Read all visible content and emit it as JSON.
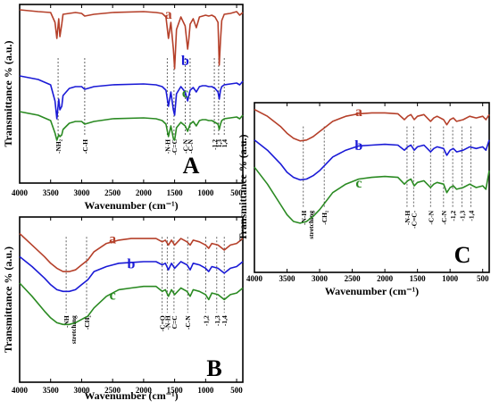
{
  "colors": {
    "a": "#b5402a",
    "b": "#1a1ad6",
    "c": "#2a8a22",
    "frame": "#000000"
  },
  "chart_data": [
    {
      "type": "line",
      "panel": "A",
      "xlabel": "Wavenumber (cm⁻¹)",
      "ylabel": "Transmittance % (a.u.)",
      "xlim": [
        4000,
        400
      ],
      "x_reversed": true,
      "xticks": [
        "4000",
        "3500",
        "3000",
        "2500",
        "2000",
        "1500",
        "1000",
        "500"
      ],
      "ylim": [
        0,
        10
      ],
      "series": [
        {
          "name": "a",
          "label_x": 1600,
          "label_y": 9.2,
          "x": [
            4000,
            3700,
            3500,
            3430,
            3400,
            3370,
            3350,
            3320,
            3300,
            3200,
            3100,
            3000,
            2950,
            2800,
            2500,
            2000,
            1800,
            1700,
            1640,
            1600,
            1560,
            1520,
            1500,
            1470,
            1400,
            1330,
            1290,
            1270,
            1250,
            1200,
            1150,
            1100,
            1050,
            1000,
            950,
            900,
            850,
            800,
            780,
            760,
            740,
            700,
            600,
            500,
            450,
            400
          ],
          "y": [
            9.7,
            9.6,
            9.55,
            9.0,
            8.1,
            9.2,
            8.2,
            8.9,
            9.45,
            9.5,
            9.55,
            9.5,
            9.35,
            9.45,
            9.55,
            9.6,
            9.55,
            9.5,
            9.3,
            8.1,
            9.0,
            7.5,
            6.4,
            8.6,
            9.3,
            8.8,
            7.5,
            8.1,
            8.9,
            9.2,
            8.7,
            9.3,
            9.35,
            9.4,
            9.35,
            9.4,
            9.3,
            9.0,
            6.6,
            8.0,
            9.1,
            9.45,
            9.5,
            9.6,
            9.4,
            9.55
          ]
        },
        {
          "name": "b",
          "label_x": 1330,
          "label_y": 6.6,
          "x": [
            4000,
            3700,
            3500,
            3430,
            3400,
            3370,
            3350,
            3320,
            3300,
            3200,
            3100,
            3000,
            2950,
            2800,
            2500,
            2000,
            1800,
            1700,
            1640,
            1600,
            1560,
            1520,
            1500,
            1470,
            1400,
            1330,
            1290,
            1270,
            1250,
            1200,
            1150,
            1100,
            1050,
            1000,
            950,
            900,
            850,
            800,
            780,
            760,
            740,
            700,
            600,
            500,
            450,
            400
          ],
          "y": [
            6.0,
            5.8,
            5.5,
            4.6,
            3.6,
            4.7,
            4.1,
            4.3,
            4.9,
            5.3,
            5.4,
            5.4,
            5.25,
            5.4,
            5.5,
            5.55,
            5.5,
            5.4,
            5.2,
            4.3,
            5.1,
            4.1,
            3.8,
            5.0,
            5.4,
            5.1,
            4.6,
            4.9,
            5.2,
            5.35,
            5.1,
            5.4,
            5.45,
            5.45,
            5.4,
            5.4,
            5.3,
            5.1,
            4.7,
            5.2,
            5.4,
            5.5,
            5.55,
            5.6,
            5.5,
            5.7
          ]
        },
        {
          "name": "c",
          "label_x": 1330,
          "label_y": 4.8,
          "x": [
            4000,
            3700,
            3500,
            3430,
            3400,
            3370,
            3350,
            3320,
            3300,
            3200,
            3100,
            3000,
            2950,
            2800,
            2500,
            2000,
            1800,
            1700,
            1640,
            1600,
            1560,
            1520,
            1500,
            1470,
            1400,
            1330,
            1290,
            1270,
            1250,
            1200,
            1150,
            1100,
            1050,
            1000,
            950,
            900,
            850,
            800,
            780,
            760,
            740,
            700,
            600,
            500,
            450,
            400
          ],
          "y": [
            4.0,
            3.8,
            3.5,
            2.8,
            2.4,
            2.7,
            2.6,
            2.7,
            3.0,
            3.35,
            3.45,
            3.45,
            3.3,
            3.45,
            3.6,
            3.65,
            3.6,
            3.5,
            3.3,
            2.6,
            3.2,
            2.5,
            2.4,
            3.1,
            3.4,
            3.2,
            2.9,
            3.1,
            3.3,
            3.45,
            3.2,
            3.5,
            3.55,
            3.55,
            3.5,
            3.5,
            3.4,
            3.3,
            3.0,
            3.3,
            3.5,
            3.6,
            3.65,
            3.7,
            3.6,
            3.8
          ]
        }
      ],
      "annotations": [
        {
          "text": "-NH₂",
          "x": 3380
        },
        {
          "text": "-C-H",
          "x": 2950
        },
        {
          "text": "-N-H",
          "x": 1620
        },
        {
          "text": "-C=C",
          "x": 1510
        },
        {
          "text": "-C-N",
          "x": 1330
        },
        {
          "text": "-C-N",
          "x": 1250
        },
        {
          "text": "-1,2",
          "x": 860
        },
        {
          "text": "1,3",
          "x": 790
        },
        {
          "text": "1,4",
          "x": 700
        }
      ]
    },
    {
      "type": "line",
      "panel": "B",
      "xlabel": "Wavenumber (cm⁻¹)",
      "ylabel": "Transmittance % (a.u.)",
      "xlim": [
        4000,
        400
      ],
      "x_reversed": true,
      "xticks": [
        "4000",
        "3500",
        "3000",
        "2500",
        "2000",
        "1500",
        "1000",
        "500"
      ],
      "ylim": [
        0,
        10
      ],
      "series": [
        {
          "name": "a",
          "label_x": 2500,
          "label_y": 8.4,
          "x": [
            4000,
            3800,
            3600,
            3500,
            3400,
            3300,
            3200,
            3100,
            3000,
            2900,
            2800,
            2600,
            2400,
            2200,
            2000,
            1800,
            1700,
            1650,
            1600,
            1550,
            1500,
            1400,
            1300,
            1250,
            1200,
            1100,
            1000,
            950,
            900,
            800,
            700,
            600,
            500,
            400
          ],
          "y": [
            9.0,
            8.3,
            7.6,
            7.2,
            6.9,
            6.7,
            6.7,
            6.8,
            7.1,
            7.4,
            7.9,
            8.4,
            8.6,
            8.7,
            8.7,
            8.7,
            8.5,
            8.6,
            8.3,
            8.6,
            8.3,
            8.7,
            8.5,
            8.3,
            8.6,
            8.5,
            8.3,
            8.1,
            8.4,
            8.3,
            8.0,
            8.3,
            8.4,
            8.7
          ]
        },
        {
          "name": "b",
          "label_x": 2200,
          "label_y": 6.9,
          "x": [
            4000,
            3800,
            3600,
            3500,
            3400,
            3300,
            3200,
            3100,
            3000,
            2900,
            2800,
            2600,
            2400,
            2200,
            2000,
            1800,
            1700,
            1650,
            1600,
            1550,
            1500,
            1400,
            1300,
            1250,
            1200,
            1100,
            1000,
            950,
            900,
            800,
            700,
            600,
            500,
            400
          ],
          "y": [
            7.6,
            7.0,
            6.3,
            5.9,
            5.6,
            5.5,
            5.5,
            5.6,
            5.9,
            6.2,
            6.7,
            7.0,
            7.2,
            7.25,
            7.3,
            7.3,
            7.1,
            7.2,
            6.8,
            7.2,
            6.9,
            7.3,
            7.1,
            6.8,
            7.2,
            7.1,
            6.9,
            6.7,
            7.0,
            6.9,
            6.6,
            6.9,
            7.0,
            7.3
          ]
        },
        {
          "name": "c",
          "label_x": 2500,
          "label_y": 5.0,
          "x": [
            4000,
            3800,
            3600,
            3500,
            3400,
            3300,
            3200,
            3100,
            3000,
            2900,
            2800,
            2600,
            2400,
            2200,
            2000,
            1800,
            1700,
            1650,
            1600,
            1550,
            1500,
            1400,
            1300,
            1250,
            1200,
            1100,
            1000,
            950,
            900,
            800,
            700,
            600,
            500,
            400
          ],
          "y": [
            6.0,
            5.2,
            4.3,
            3.9,
            3.6,
            3.5,
            3.5,
            3.6,
            3.8,
            4.0,
            4.5,
            5.2,
            5.6,
            5.7,
            5.8,
            5.8,
            5.5,
            5.6,
            5.2,
            5.6,
            5.3,
            5.7,
            5.5,
            5.2,
            5.6,
            5.5,
            5.3,
            5.0,
            5.4,
            5.3,
            5.0,
            5.3,
            5.4,
            5.7
          ]
        }
      ],
      "annotations": [
        {
          "text": "-NH",
          "text2": "stretching",
          "x": 3250
        },
        {
          "text": "-CH₂",
          "x": 2920
        },
        {
          "text": "-C=O",
          "x": 1700
        },
        {
          "text": "-N-H",
          "x": 1620
        },
        {
          "text": "C=C",
          "x": 1510
        },
        {
          "text": "-C-N",
          "x": 1290
        },
        {
          "text": "-1,2",
          "x": 1000
        },
        {
          "text": "-1,3",
          "x": 820
        },
        {
          "text": "-1,4",
          "x": 700
        }
      ]
    },
    {
      "type": "line",
      "panel": "C",
      "xlabel": "Wavenumber (cm⁻¹)",
      "ylabel": "Transmittance % (a.u.)",
      "xlim": [
        4000,
        400
      ],
      "x_reversed": true,
      "xticks": [
        "4000",
        "3500",
        "3000",
        "2500",
        "2000",
        "1500",
        "1000",
        "500"
      ],
      "ylim": [
        0,
        10
      ],
      "series": [
        {
          "name": "a",
          "label_x": 2400,
          "label_y": 9.2,
          "x": [
            4000,
            3800,
            3600,
            3500,
            3400,
            3300,
            3200,
            3100,
            3000,
            2900,
            2800,
            2600,
            2400,
            2200,
            2000,
            1800,
            1700,
            1650,
            1600,
            1550,
            1500,
            1400,
            1300,
            1250,
            1200,
            1100,
            1050,
            1000,
            950,
            900,
            800,
            700,
            600,
            500,
            450,
            400
          ],
          "y": [
            9.6,
            9.2,
            8.6,
            8.2,
            7.9,
            7.75,
            7.8,
            8.0,
            8.3,
            8.6,
            8.9,
            9.2,
            9.35,
            9.4,
            9.4,
            9.35,
            9.0,
            9.2,
            9.3,
            9.0,
            9.2,
            9.3,
            8.9,
            9.1,
            9.2,
            9.0,
            8.7,
            9.0,
            9.1,
            8.9,
            9.0,
            9.2,
            9.1,
            9.2,
            9.0,
            9.3
          ]
        },
        {
          "name": "b",
          "label_x": 2400,
          "label_y": 7.2,
          "x": [
            4000,
            3800,
            3600,
            3500,
            3400,
            3300,
            3200,
            3100,
            3000,
            2900,
            2800,
            2600,
            2400,
            2200,
            2000,
            1800,
            1700,
            1650,
            1600,
            1550,
            1500,
            1400,
            1300,
            1250,
            1200,
            1100,
            1050,
            1000,
            950,
            900,
            800,
            700,
            600,
            500,
            450,
            400
          ],
          "y": [
            7.8,
            7.2,
            6.4,
            5.9,
            5.6,
            5.45,
            5.5,
            5.7,
            6.0,
            6.4,
            6.8,
            7.2,
            7.45,
            7.5,
            7.55,
            7.5,
            7.2,
            7.4,
            7.5,
            7.2,
            7.4,
            7.5,
            7.1,
            7.3,
            7.4,
            7.3,
            6.9,
            7.2,
            7.3,
            7.1,
            7.2,
            7.4,
            7.3,
            7.4,
            7.2,
            7.8
          ]
        },
        {
          "name": "c",
          "label_x": 2400,
          "label_y": 5.0,
          "x": [
            4000,
            3800,
            3600,
            3500,
            3400,
            3300,
            3200,
            3100,
            3000,
            2900,
            2800,
            2600,
            2400,
            2200,
            2000,
            1800,
            1700,
            1650,
            1600,
            1550,
            1500,
            1400,
            1300,
            1250,
            1200,
            1100,
            1050,
            1000,
            950,
            900,
            800,
            700,
            600,
            500,
            450,
            400
          ],
          "y": [
            6.2,
            5.2,
            4.0,
            3.4,
            3.0,
            2.9,
            3.0,
            3.3,
            3.7,
            4.2,
            4.7,
            5.2,
            5.5,
            5.6,
            5.65,
            5.6,
            5.2,
            5.4,
            5.5,
            5.1,
            5.3,
            5.4,
            5.0,
            5.2,
            5.3,
            5.2,
            4.7,
            5.0,
            5.1,
            4.9,
            5.0,
            5.2,
            5.0,
            5.1,
            4.9,
            6.0
          ]
        }
      ],
      "annotations": [
        {
          "text": "-N-H",
          "text2": "stretching",
          "x": 3250
        },
        {
          "text": "-CH₂",
          "x": 2930
        },
        {
          "text": "-N-H",
          "x": 1660
        },
        {
          "text": "-C=C-",
          "x": 1560
        },
        {
          "text": "-C-N",
          "x": 1300
        },
        {
          "text": "-C-N",
          "x": 1100
        },
        {
          "text": "-1,2",
          "x": 960
        },
        {
          "text": "-1,3",
          "x": 820
        },
        {
          "text": "-1,4",
          "x": 680
        }
      ]
    }
  ]
}
